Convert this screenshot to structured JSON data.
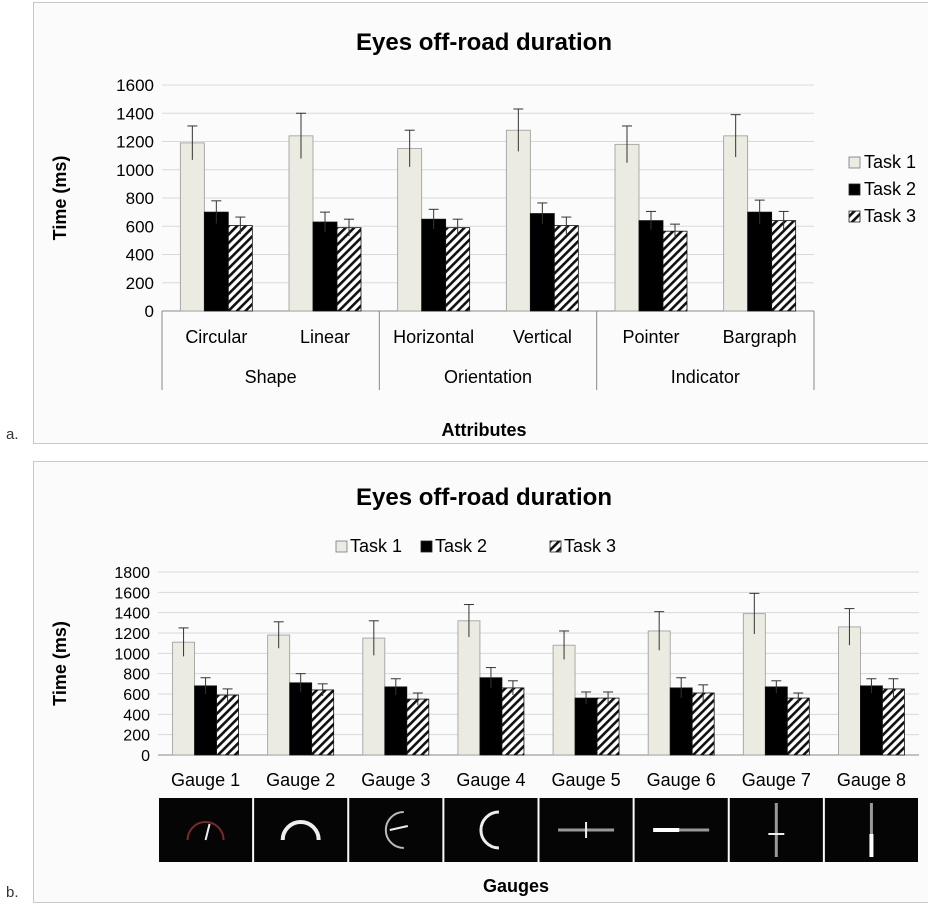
{
  "panel_labels": {
    "a": "a.",
    "b": "b."
  },
  "colors": {
    "task1": "#ebebe1",
    "task2": "#000000",
    "task3_bg": "#ffffff",
    "axis": "#888888"
  },
  "chart_data": [
    {
      "type": "bar",
      "title": "Eyes off-road duration",
      "ylabel": "Time (ms)",
      "xlabel": "Attributes",
      "ylim": [
        0,
        1600
      ],
      "yticks": [
        0,
        200,
        400,
        600,
        800,
        1000,
        1200,
        1400,
        1600
      ],
      "categories": [
        "Circular",
        "Linear",
        "Horizontal",
        "Vertical",
        "Pointer",
        "Bargraph"
      ],
      "groups": [
        {
          "label": "Shape",
          "categories": [
            "Circular",
            "Linear"
          ]
        },
        {
          "label": "Orientation",
          "categories": [
            "Horizontal",
            "Vertical"
          ]
        },
        {
          "label": "Indicator",
          "categories": [
            "Pointer",
            "Bargraph"
          ]
        }
      ],
      "legend_position": "right",
      "series": [
        {
          "name": "Task 1",
          "values": [
            1190,
            1240,
            1150,
            1280,
            1180,
            1240
          ],
          "errors": [
            120,
            160,
            130,
            150,
            130,
            150
          ]
        },
        {
          "name": "Task 2",
          "values": [
            700,
            630,
            650,
            690,
            640,
            700
          ],
          "errors": [
            80,
            70,
            70,
            75,
            65,
            85
          ]
        },
        {
          "name": "Task 3",
          "values": [
            605,
            590,
            590,
            605,
            565,
            640
          ],
          "errors": [
            60,
            60,
            60,
            60,
            50,
            65
          ]
        }
      ]
    },
    {
      "type": "bar",
      "title": "Eyes off-road duration",
      "ylabel": "Time (ms)",
      "xlabel": "Gauges",
      "ylim": [
        0,
        1800
      ],
      "yticks": [
        0,
        200,
        400,
        600,
        800,
        1000,
        1200,
        1400,
        1600,
        1800
      ],
      "categories": [
        "Gauge 1",
        "Gauge 2",
        "Gauge 3",
        "Gauge 4",
        "Gauge 5",
        "Gauge 6",
        "Gauge 7",
        "Gauge 8"
      ],
      "legend_position": "top",
      "series": [
        {
          "name": "Task 1",
          "values": [
            1110,
            1180,
            1150,
            1320,
            1080,
            1220,
            1390,
            1260
          ],
          "errors": [
            140,
            130,
            170,
            160,
            140,
            190,
            200,
            180
          ]
        },
        {
          "name": "Task 2",
          "values": [
            680,
            710,
            670,
            760,
            560,
            660,
            670,
            680
          ],
          "errors": [
            80,
            90,
            80,
            100,
            60,
            100,
            60,
            70
          ]
        },
        {
          "name": "Task 3",
          "values": [
            590,
            640,
            550,
            660,
            560,
            610,
            560,
            650
          ],
          "errors": [
            60,
            60,
            60,
            70,
            60,
            80,
            50,
            100
          ]
        }
      ],
      "gauge_icons": [
        "gauge-circular-pointer",
        "gauge-circular-bargraph",
        "gauge-vertical-pointer-arc",
        "gauge-vertical-bargraph-arc",
        "gauge-horizontal-pointer",
        "gauge-horizontal-bargraph",
        "gauge-vertical-pointer",
        "gauge-vertical-bargraph"
      ]
    }
  ]
}
